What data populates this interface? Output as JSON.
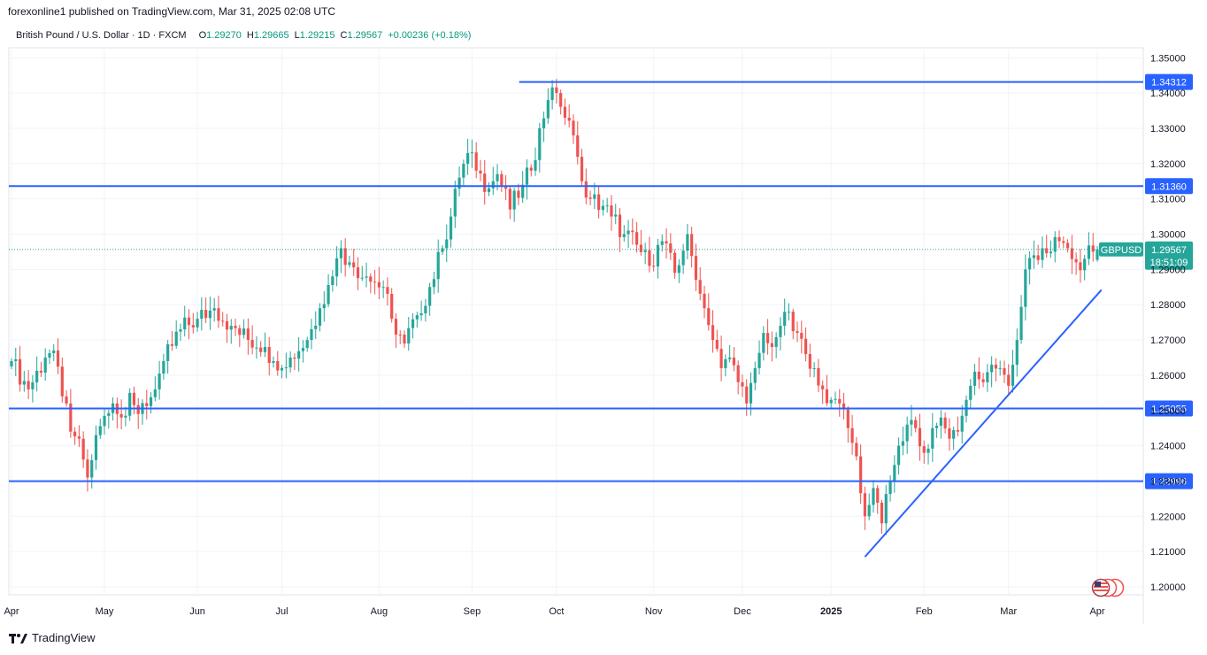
{
  "header": {
    "published": "forexonline1 published on TradingView.com, Mar 31, 2025 02:08 UTC"
  },
  "legend": {
    "symbol": "British Pound / U.S. Dollar · 1D · FXCM",
    "o_label": "O",
    "o_value": "1.29270",
    "h_label": "H",
    "h_value": "1.29665",
    "l_label": "L",
    "l_value": "1.29215",
    "c_label": "C",
    "c_value": "1.29567",
    "change": "+0.00236 (+0.18%)"
  },
  "footer": {
    "brand": "TradingView"
  },
  "colors": {
    "up": "#26a69a",
    "down": "#ef5350",
    "line": "#2962ff",
    "grid": "#f0f3fa",
    "axis_text": "#131722",
    "price_tag": "#2962ff",
    "current_tag": "#26a69a"
  },
  "chart_data": {
    "type": "candlestick",
    "symbol": "GBPUSD",
    "timeframe": "1D",
    "ylim": [
      1.1965,
      1.3535
    ],
    "yticks": [
      "1.35000",
      "1.34000",
      "1.33000",
      "1.32000",
      "1.31000",
      "1.30000",
      "1.29000",
      "1.28000",
      "1.27000",
      "1.26000",
      "1.25000",
      "1.24000",
      "1.23000",
      "1.22000",
      "1.21000",
      "1.20000"
    ],
    "xticks": [
      {
        "label": "Apr",
        "index": 0
      },
      {
        "label": "May",
        "index": 22
      },
      {
        "label": "Jun",
        "index": 44
      },
      {
        "label": "Jul",
        "index": 64
      },
      {
        "label": "Aug",
        "index": 87
      },
      {
        "label": "Sep",
        "index": 109
      },
      {
        "label": "Oct",
        "index": 129
      },
      {
        "label": "Nov",
        "index": 152
      },
      {
        "label": "Dec",
        "index": 173
      },
      {
        "label": "2025",
        "index": 194,
        "bold": true
      },
      {
        "label": "Feb",
        "index": 216
      },
      {
        "label": "Mar",
        "index": 236
      },
      {
        "label": "Apr",
        "index": 257
      }
    ],
    "bars_total": 260,
    "horizontal_levels": [
      {
        "label": "1.34312",
        "value": 1.34312,
        "start_index": 121
      },
      {
        "label": "1.31360",
        "value": 1.3136,
        "start_index": 0
      },
      {
        "label": "1.25055",
        "value": 1.25055,
        "start_index": 0
      },
      {
        "label": "1.22996",
        "value": 1.22996,
        "start_index": 0
      }
    ],
    "trendline": {
      "from": {
        "index": 202,
        "value": 1.2085
      },
      "to": {
        "index": 258,
        "value": 1.2842
      }
    },
    "current": {
      "name": "GBPUSD",
      "price": "1.29567",
      "value": 1.29567,
      "countdown": "18:51:09"
    },
    "close_anchors": [
      [
        0,
        1.264
      ],
      [
        4,
        1.256
      ],
      [
        8,
        1.265
      ],
      [
        10,
        1.267
      ],
      [
        12,
        1.254
      ],
      [
        14,
        1.244
      ],
      [
        16,
        1.242
      ],
      [
        18,
        1.231
      ],
      [
        20,
        1.243
      ],
      [
        24,
        1.252
      ],
      [
        26,
        1.248
      ],
      [
        28,
        1.255
      ],
      [
        30,
        1.249
      ],
      [
        34,
        1.256
      ],
      [
        36,
        1.264
      ],
      [
        40,
        1.273
      ],
      [
        44,
        1.276
      ],
      [
        48,
        1.279
      ],
      [
        52,
        1.274
      ],
      [
        56,
        1.27
      ],
      [
        60,
        1.268
      ],
      [
        62,
        1.264
      ],
      [
        66,
        1.265
      ],
      [
        70,
        1.27
      ],
      [
        73,
        1.279
      ],
      [
        76,
        1.288
      ],
      [
        78,
        1.296
      ],
      [
        80,
        1.292
      ],
      [
        84,
        1.288
      ],
      [
        88,
        1.285
      ],
      [
        90,
        1.276
      ],
      [
        93,
        1.269
      ],
      [
        96,
        1.277
      ],
      [
        99,
        1.285
      ],
      [
        102,
        1.296
      ],
      [
        104,
        1.305
      ],
      [
        106,
        1.316
      ],
      [
        108,
        1.323
      ],
      [
        110,
        1.318
      ],
      [
        113,
        1.313
      ],
      [
        115,
        1.317
      ],
      [
        118,
        1.307
      ],
      [
        121,
        1.314
      ],
      [
        123,
        1.318
      ],
      [
        125,
        1.33
      ],
      [
        127,
        1.338
      ],
      [
        129,
        1.34
      ],
      [
        131,
        1.333
      ],
      [
        133,
        1.328
      ],
      [
        135,
        1.315
      ],
      [
        137,
        1.31
      ],
      [
        140,
        1.308
      ],
      [
        142,
        1.305
      ],
      [
        145,
        1.3
      ],
      [
        148,
        1.297
      ],
      [
        151,
        1.291
      ],
      [
        154,
        1.298
      ],
      [
        157,
        1.289
      ],
      [
        160,
        1.3
      ],
      [
        162,
        1.287
      ],
      [
        164,
        1.279
      ],
      [
        166,
        1.27
      ],
      [
        168,
        1.262
      ],
      [
        170,
        1.265
      ],
      [
        172,
        1.258
      ],
      [
        174,
        1.252
      ],
      [
        176,
        1.262
      ],
      [
        178,
        1.272
      ],
      [
        180,
        1.268
      ],
      [
        182,
        1.274
      ],
      [
        184,
        1.278
      ],
      [
        186,
        1.272
      ],
      [
        188,
        1.266
      ],
      [
        190,
        1.262
      ],
      [
        192,
        1.256
      ],
      [
        194,
        1.253
      ],
      [
        196,
        1.252
      ],
      [
        198,
        1.245
      ],
      [
        200,
        1.237
      ],
      [
        202,
        1.22
      ],
      [
        204,
        1.228
      ],
      [
        206,
        1.218
      ],
      [
        208,
        1.23
      ],
      [
        210,
        1.24
      ],
      [
        212,
        1.246
      ],
      [
        214,
        1.245
      ],
      [
        216,
        1.238
      ],
      [
        218,
        1.245
      ],
      [
        220,
        1.248
      ],
      [
        222,
        1.242
      ],
      [
        224,
        1.244
      ],
      [
        226,
        1.253
      ],
      [
        228,
        1.261
      ],
      [
        230,
        1.258
      ],
      [
        232,
        1.263
      ],
      [
        234,
        1.262
      ],
      [
        236,
        1.257
      ],
      [
        238,
        1.27
      ],
      [
        240,
        1.29
      ],
      [
        242,
        1.294
      ],
      [
        244,
        1.296
      ],
      [
        246,
        1.295
      ],
      [
        248,
        1.298
      ],
      [
        250,
        1.296
      ],
      [
        252,
        1.292
      ],
      [
        254,
        1.293
      ],
      [
        256,
        1.295
      ],
      [
        257,
        1.29567
      ]
    ]
  }
}
